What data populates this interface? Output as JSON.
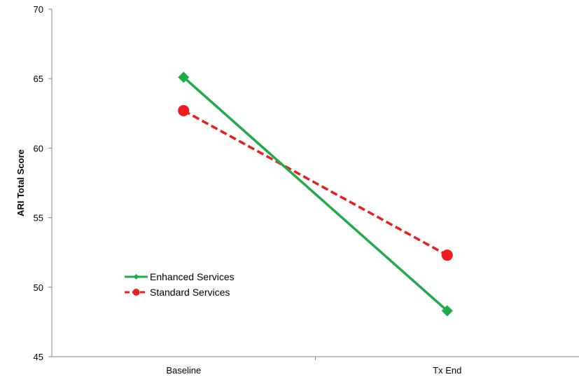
{
  "chart_data": {
    "type": "line",
    "title": "",
    "xlabel": "",
    "ylabel": "ARI Total Score",
    "categories": [
      "Baseline",
      "Tx End"
    ],
    "ylim": [
      45,
      70
    ],
    "yticks": [
      45,
      50,
      55,
      60,
      65,
      70
    ],
    "grid": false,
    "legend_position": "bottom-left",
    "series": [
      {
        "name": "Enhanced Services",
        "values": [
          65.1,
          48.3
        ],
        "color": "#1faa4b",
        "line_style": "solid",
        "marker": "diamond"
      },
      {
        "name": "Standard Services",
        "values": [
          62.7,
          52.3
        ],
        "color": "#ee1c1c",
        "line_style": "dashed",
        "marker": "circle"
      }
    ]
  }
}
